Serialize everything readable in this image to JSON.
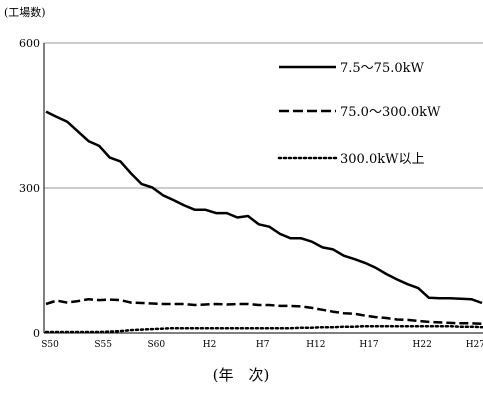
{
  "chart_data": {
    "type": "line",
    "ylabel": "(工場数)",
    "xlabel": "(年　次)",
    "ylim": [
      0,
      600
    ],
    "y_ticks": [
      "0",
      "300",
      "600"
    ],
    "x": [
      1975,
      1976,
      1977,
      1978,
      1979,
      1980,
      1981,
      1982,
      1983,
      1984,
      1985,
      1986,
      1987,
      1988,
      1989,
      1990,
      1991,
      1992,
      1993,
      1994,
      1995,
      1996,
      1997,
      1998,
      1999,
      2000,
      2001,
      2002,
      2003,
      2004,
      2005,
      2006,
      2007,
      2008,
      2009,
      2010,
      2011,
      2012,
      2013,
      2014,
      2015,
      2016
    ],
    "x_ticks": [
      {
        "x": 1975,
        "label": "S50"
      },
      {
        "x": 1980,
        "label": "S55"
      },
      {
        "x": 1985,
        "label": "S60"
      },
      {
        "x": 1990,
        "label": "H2"
      },
      {
        "x": 1995,
        "label": "H7"
      },
      {
        "x": 2000,
        "label": "H12"
      },
      {
        "x": 2005,
        "label": "H17"
      },
      {
        "x": 2010,
        "label": "H22"
      },
      {
        "x": 2015,
        "label": "H27"
      }
    ],
    "series": [
      {
        "name": "7.5～75.0kW",
        "style": "solid",
        "color": "#000000",
        "values": [
          458,
          447,
          437,
          417,
          397,
          387,
          363,
          355,
          330,
          308,
          301,
          285,
          275,
          264,
          255,
          255,
          248,
          248,
          239,
          242,
          225,
          220,
          205,
          196,
          196,
          189,
          177,
          173,
          160,
          153,
          145,
          135,
          122,
          111,
          101,
          93,
          73,
          72,
          72,
          71,
          70,
          62
        ]
      },
      {
        "name": "75.0～300.0kW",
        "style": "dashed",
        "color": "#000000",
        "values": [
          60,
          67,
          63,
          66,
          70,
          68,
          69,
          68,
          63,
          62,
          61,
          60,
          60,
          60,
          58,
          59,
          60,
          59,
          60,
          60,
          58,
          58,
          56,
          56,
          55,
          52,
          48,
          44,
          41,
          40,
          36,
          33,
          31,
          28,
          27,
          25,
          23,
          22,
          21,
          20,
          20,
          19
        ]
      },
      {
        "name": "300.0kW以上",
        "style": "dotted",
        "color": "#000000",
        "values": [
          2,
          2,
          2,
          2,
          2,
          2,
          3,
          4,
          6,
          7,
          8,
          9,
          10,
          10,
          10,
          10,
          10,
          10,
          10,
          10,
          10,
          10,
          10,
          10,
          11,
          11,
          12,
          12,
          13,
          13,
          14,
          14,
          14,
          14,
          14,
          14,
          14,
          14,
          14,
          13,
          13,
          12
        ]
      }
    ],
    "legend_position": "top-right",
    "grid": "horizontal"
  }
}
